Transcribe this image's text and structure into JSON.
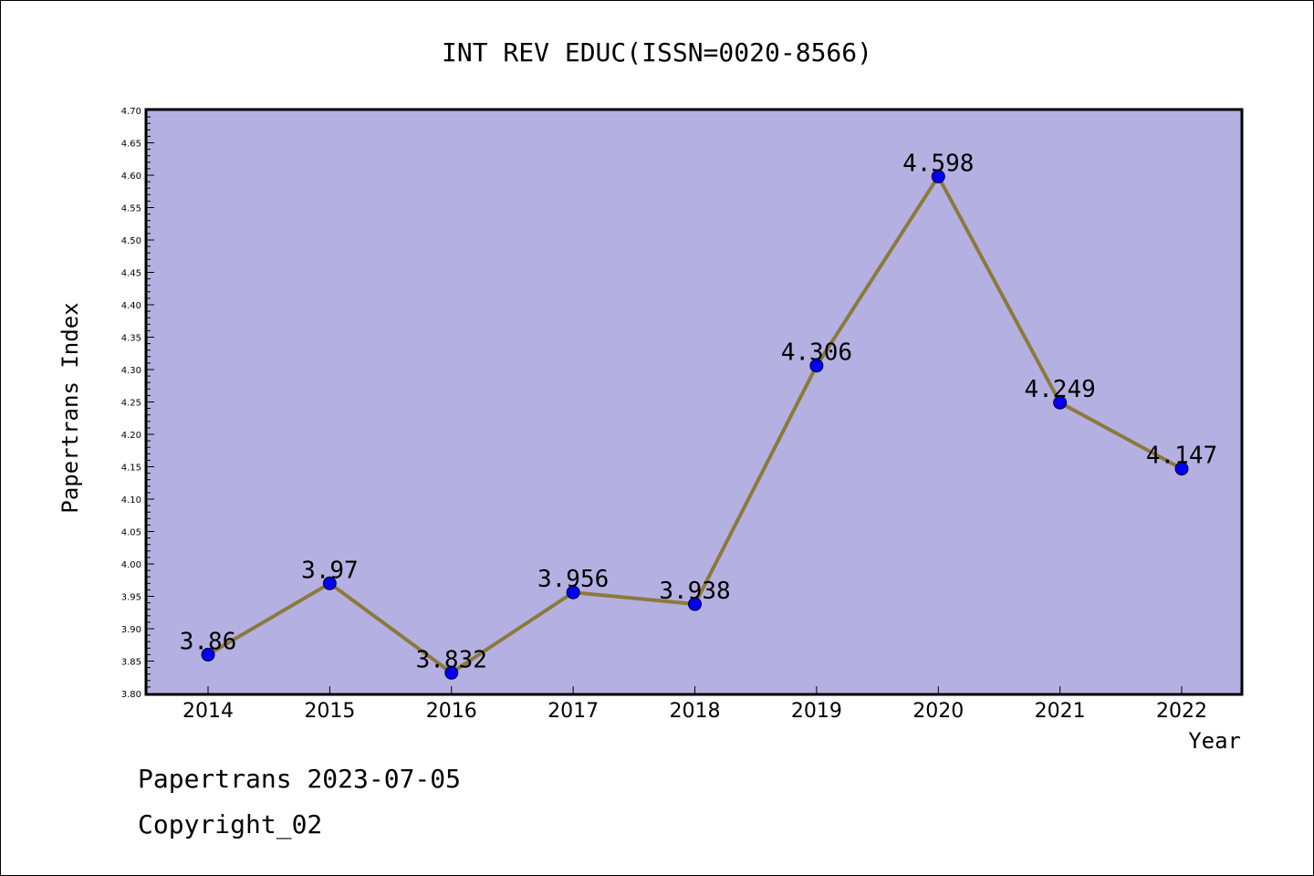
{
  "chart_data": {
    "type": "line",
    "title": "INT REV EDUC(ISSN=0020-8566)",
    "xlabel": "Year",
    "ylabel": "Papertrans Index",
    "categories": [
      "2014",
      "2015",
      "2016",
      "2017",
      "2018",
      "2019",
      "2020",
      "2021",
      "2022"
    ],
    "series": [
      {
        "values": [
          3.86,
          3.97,
          3.832,
          3.956,
          3.938,
          4.306,
          4.598,
          4.249,
          4.147
        ],
        "labels": [
          "3.86",
          "3.97",
          "3.832",
          "3.956",
          "3.938",
          "4.306",
          "4.598",
          "4.249",
          "4.147"
        ]
      }
    ],
    "ylim": [
      3.8,
      4.7
    ],
    "yticks": [
      "3.80",
      "3.85",
      "3.90",
      "3.95",
      "4.00",
      "4.05",
      "4.10",
      "4.15",
      "4.20",
      "4.25",
      "4.30",
      "4.35",
      "4.40",
      "4.45",
      "4.50",
      "4.55",
      "4.60",
      "4.65",
      "4.70"
    ],
    "grid": false,
    "legend": "none",
    "colors": {
      "plot_background": "#b5b0e2",
      "line": "#8b7a3a",
      "marker": "#0000ee"
    }
  },
  "footer": {
    "line1": "Papertrans 2023-07-05",
    "line2": "Copyright_02"
  }
}
